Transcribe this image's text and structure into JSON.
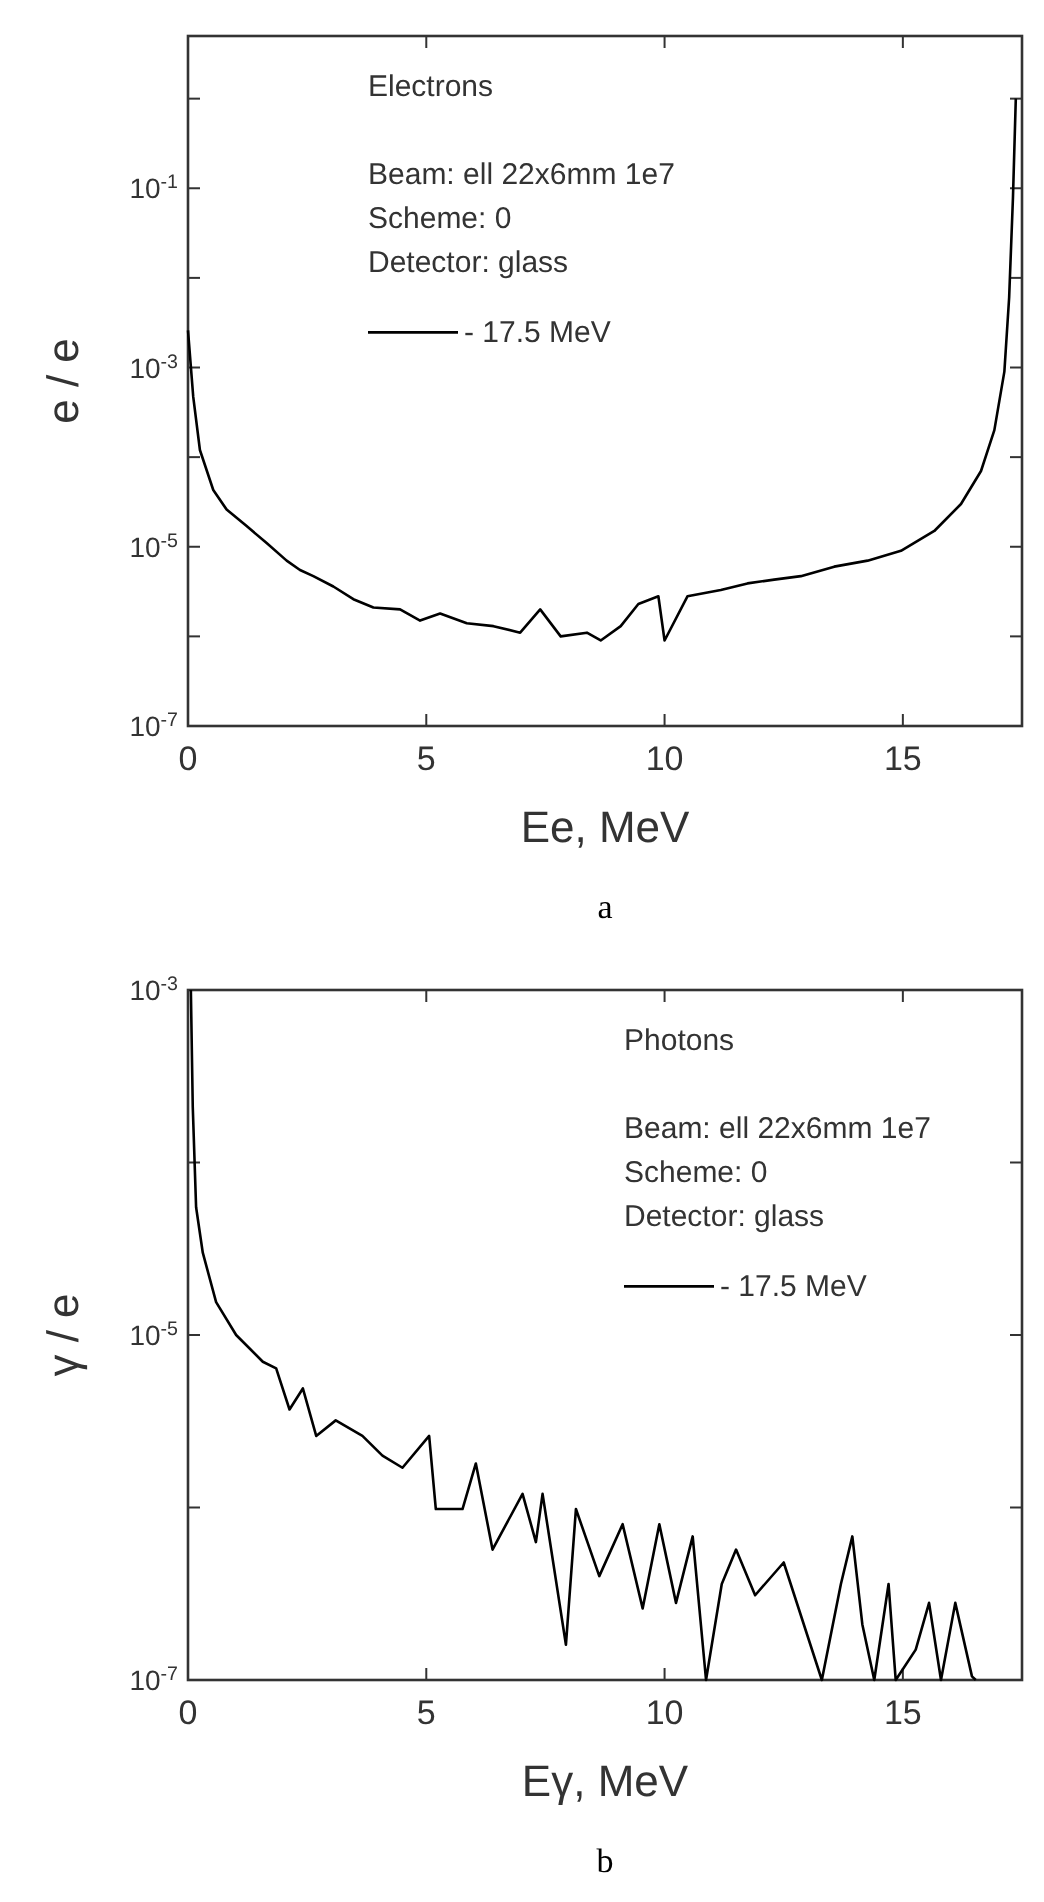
{
  "chart_data": [
    {
      "type": "line",
      "xlabel": "Ee, MeV",
      "ylabel": "e / e",
      "log": "y",
      "legend": "top",
      "grid": false,
      "xlim": [
        0,
        17.5
      ],
      "xticks": [
        0,
        5,
        10,
        15
      ],
      "ylim": [
        1e-07,
        5
      ],
      "yticks": [
        {
          "value": 1,
          "label": null
        },
        {
          "value": 0.1,
          "label": "10$^{-1}$"
        },
        {
          "value": 0.01,
          "label": null
        },
        {
          "value": 0.001,
          "label": "10$^{-3}$"
        },
        {
          "value": 0.0001,
          "label": null
        },
        {
          "value": 1e-05,
          "label": "10$^{-5}$"
        },
        {
          "value": 1e-06,
          "label": null
        },
        {
          "value": 1e-07,
          "label": "10$^{-7}$"
        }
      ],
      "annotations": [
        "Electrons",
        "Beam: ell 22x6mm 1e7",
        "Scheme: 0",
        "Detector: glass",
        "a"
      ],
      "series": [
        {
          "name": "- 17.5 MeV",
          "color": "#000000",
          "x": [
            0,
            0.11,
            0.25,
            0.53,
            0.81,
            1.23,
            1.65,
            2.07,
            2.35,
            2.63,
            3.05,
            3.47,
            3.89,
            4.45,
            4.87,
            5.29,
            5.85,
            6.41,
            6.97,
            7.39,
            7.82,
            8.37,
            8.66,
            9.08,
            9.45,
            9.87,
            10.0,
            10.48,
            11.18,
            11.74,
            12.3,
            12.86,
            13.56,
            14.26,
            14.96,
            15.66,
            16.22,
            16.64,
            16.92,
            17.13,
            17.23,
            17.31,
            17.37
          ],
          "values": [
            0.0026,
            0.00047,
            0.00012,
            4.3e-05,
            2.6e-05,
            1.7e-05,
            1.1e-05,
            7e-06,
            5.5e-06,
            4.7e-06,
            3.6e-06,
            2.6e-06,
            2.1e-06,
            2e-06,
            1.5e-06,
            1.8e-06,
            1.4e-06,
            1.3e-06,
            1.1e-06,
            2e-06,
            1e-06,
            1.1e-06,
            9e-07,
            1.3e-06,
            2.3e-06,
            2.8e-06,
            9e-07,
            2.8e-06,
            3.3e-06,
            3.9e-06,
            4.3e-06,
            4.7e-06,
            6e-06,
            7e-06,
            9e-06,
            1.5e-05,
            3e-05,
            7e-05,
            0.0002,
            0.0009,
            0.006,
            0.078,
            1.0
          ]
        }
      ]
    },
    {
      "type": "line",
      "xlabel": "Eγ, MeV",
      "ylabel": "γ / e",
      "log": "y",
      "legend": "top right",
      "grid": false,
      "xlim": [
        0,
        17.5
      ],
      "xticks": [
        0,
        5,
        10,
        15
      ],
      "ylim": [
        1e-07,
        0.001
      ],
      "yticks": [
        {
          "value": 0.001,
          "label": "10$^{-3}$"
        },
        {
          "value": 0.0001,
          "label": null
        },
        {
          "value": 1e-05,
          "label": "10$^{-5}$"
        },
        {
          "value": 1e-06,
          "label": null
        },
        {
          "value": 1e-07,
          "label": "10$^{-7}$"
        }
      ],
      "annotations": [
        "Photons",
        "Beam: ell 22x6mm 1e7",
        "Scheme: 0",
        "Detector: glass",
        "b"
      ],
      "series": [
        {
          "name": "- 17.5 MeV",
          "color": "#000000",
          "x": [
            0.06,
            0.1,
            0.17,
            0.31,
            0.59,
            1.01,
            1.57,
            1.85,
            2.13,
            2.41,
            2.69,
            3.1,
            3.66,
            4.08,
            4.5,
            5.06,
            5.2,
            5.76,
            6.04,
            6.39,
            7.02,
            7.3,
            7.44,
            7.93,
            8.14,
            8.63,
            9.12,
            9.54,
            9.89,
            10.24,
            10.59,
            10.87,
            11.2,
            11.5,
            11.9,
            12.5,
            13.3,
            13.7,
            13.94,
            14.15,
            14.4,
            14.7,
            14.85,
            15.27,
            15.55,
            15.8,
            16.1,
            16.45,
            16.53
          ],
          "values": [
            0.001,
            0.00021,
            5.5e-05,
            3e-05,
            1.55e-05,
            1e-05,
            7e-06,
            6.4e-06,
            3.7e-06,
            4.9e-06,
            2.6e-06,
            3.2e-06,
            2.6e-06,
            2e-06,
            1.7e-06,
            2.6e-06,
            9.8e-07,
            9.8e-07,
            1.8e-06,
            5.7e-07,
            1.2e-06,
            6.3e-07,
            1.2e-06,
            1.6e-07,
            9.8e-07,
            4e-07,
            8e-07,
            2.6e-07,
            8e-07,
            2.8e-07,
            6.8e-07,
            1e-07,
            3.6e-07,
            5.7e-07,
            3.1e-07,
            4.8e-07,
            1e-07,
            3.6e-07,
            6.8e-07,
            2.1e-07,
            1e-07,
            3.6e-07,
            1e-07,
            1.5e-07,
            2.8e-07,
            1e-07,
            2.8e-07,
            1.05e-07,
            1e-07
          ]
        }
      ]
    }
  ]
}
